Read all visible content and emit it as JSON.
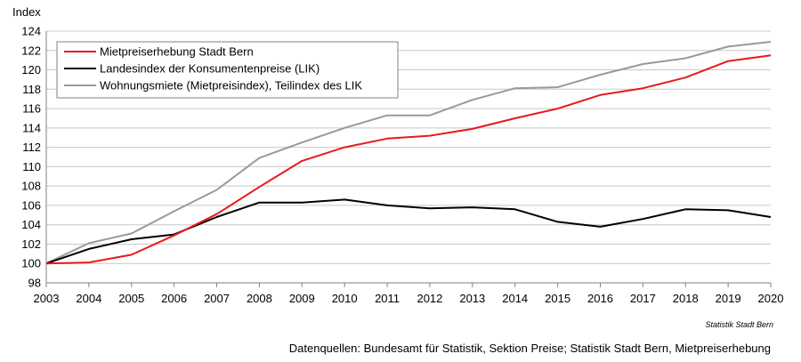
{
  "chart_data": {
    "type": "line",
    "title": "",
    "xlabel": "",
    "ylabel": "Index",
    "x": [
      "2003",
      "2004",
      "2005",
      "2006",
      "2007",
      "2008",
      "2009",
      "2010",
      "2011",
      "2012",
      "2013",
      "2014",
      "2015",
      "2016",
      "2017",
      "2018",
      "2019",
      "2020"
    ],
    "ylim": [
      98,
      124
    ],
    "yticks": [
      98,
      100,
      102,
      104,
      106,
      108,
      110,
      112,
      114,
      116,
      118,
      120,
      122,
      124
    ],
    "grid": true,
    "legend_position": "top-left",
    "series": [
      {
        "name": "Mietpreiserhebung Stadt Bern",
        "color": "#e8191b",
        "values": [
          100,
          100.1,
          100.9,
          102.9,
          105.1,
          107.9,
          110.6,
          112.0,
          112.9,
          113.2,
          113.9,
          115.0,
          116.0,
          117.4,
          118.1,
          119.2,
          120.9,
          121.5
        ]
      },
      {
        "name": "Landesindex der Konsumentenpreise (LIK)",
        "color": "#000000",
        "values": [
          100,
          101.5,
          102.5,
          103.0,
          104.8,
          106.3,
          106.3,
          106.6,
          106.0,
          105.7,
          105.8,
          105.6,
          104.3,
          103.8,
          104.6,
          105.6,
          105.5,
          104.8
        ]
      },
      {
        "name": "Wohnungsmiete (Mietpreisindex), Teilindex des LIK",
        "color": "#999999",
        "values": [
          100,
          102.1,
          103.1,
          105.4,
          107.6,
          110.9,
          112.5,
          114.0,
          115.3,
          115.3,
          116.9,
          118.1,
          118.2,
          119.5,
          120.6,
          121.2,
          122.4,
          122.9
        ]
      }
    ]
  },
  "footer": {
    "credit": "Statistik Stadt Bern",
    "sources": "Datenquellen: Bundesamt für Statistik, Sektion Preise; Statistik Stadt Bern, Mietpreiserhebung"
  }
}
